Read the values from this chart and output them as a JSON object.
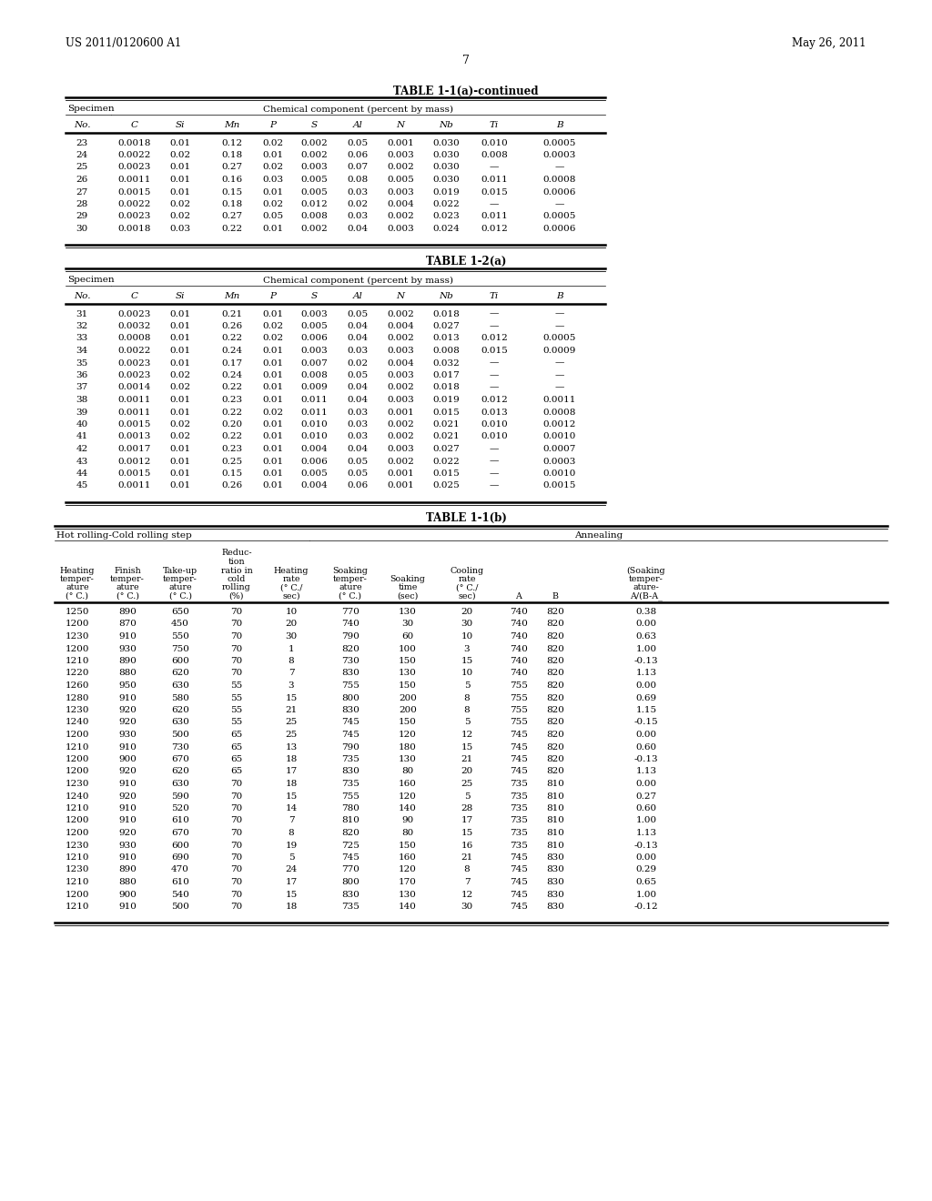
{
  "header_left": "US 2011/0120600 A1",
  "header_right": "May 26, 2011",
  "page_number": "7",
  "table1_title": "TABLE 1-1(a)-continued",
  "table1_specimen_header": "Specimen",
  "table1_chem_header": "Chemical component (percent by mass)",
  "table1_col_headers": [
    "No.",
    "C",
    "Si",
    "Mn",
    "P",
    "S",
    "Al",
    "N",
    "Nb",
    "Ti",
    "B"
  ],
  "table1_data": [
    [
      "23",
      "0.0018",
      "0.01",
      "0.12",
      "0.02",
      "0.002",
      "0.05",
      "0.001",
      "0.030",
      "0.010",
      "0.0005"
    ],
    [
      "24",
      "0.0022",
      "0.02",
      "0.18",
      "0.01",
      "0.002",
      "0.06",
      "0.003",
      "0.030",
      "0.008",
      "0.0003"
    ],
    [
      "25",
      "0.0023",
      "0.01",
      "0.27",
      "0.02",
      "0.003",
      "0.07",
      "0.002",
      "0.030",
      "—",
      "—"
    ],
    [
      "26",
      "0.0011",
      "0.01",
      "0.16",
      "0.03",
      "0.005",
      "0.08",
      "0.005",
      "0.030",
      "0.011",
      "0.0008"
    ],
    [
      "27",
      "0.0015",
      "0.01",
      "0.15",
      "0.01",
      "0.005",
      "0.03",
      "0.003",
      "0.019",
      "0.015",
      "0.0006"
    ],
    [
      "28",
      "0.0022",
      "0.02",
      "0.18",
      "0.02",
      "0.012",
      "0.02",
      "0.004",
      "0.022",
      "—",
      "—"
    ],
    [
      "29",
      "0.0023",
      "0.02",
      "0.27",
      "0.05",
      "0.008",
      "0.03",
      "0.002",
      "0.023",
      "0.011",
      "0.0005"
    ],
    [
      "30",
      "0.0018",
      "0.03",
      "0.22",
      "0.01",
      "0.002",
      "0.04",
      "0.003",
      "0.024",
      "0.012",
      "0.0006"
    ]
  ],
  "table2_title": "TABLE 1-2(a)",
  "table2_specimen_header": "Specimen",
  "table2_chem_header": "Chemical component (percent by mass)",
  "table2_col_headers": [
    "No.",
    "C",
    "Si",
    "Mn",
    "P",
    "S",
    "Al",
    "N",
    "Nb",
    "Ti",
    "B"
  ],
  "table2_data": [
    [
      "31",
      "0.0023",
      "0.01",
      "0.21",
      "0.01",
      "0.003",
      "0.05",
      "0.002",
      "0.018",
      "—",
      "—"
    ],
    [
      "32",
      "0.0032",
      "0.01",
      "0.26",
      "0.02",
      "0.005",
      "0.04",
      "0.004",
      "0.027",
      "—",
      "—"
    ],
    [
      "33",
      "0.0008",
      "0.01",
      "0.22",
      "0.02",
      "0.006",
      "0.04",
      "0.002",
      "0.013",
      "0.012",
      "0.0005"
    ],
    [
      "34",
      "0.0022",
      "0.01",
      "0.24",
      "0.01",
      "0.003",
      "0.03",
      "0.003",
      "0.008",
      "0.015",
      "0.0009"
    ],
    [
      "35",
      "0.0023",
      "0.01",
      "0.17",
      "0.01",
      "0.007",
      "0.02",
      "0.004",
      "0.032",
      "—",
      "—"
    ],
    [
      "36",
      "0.0023",
      "0.02",
      "0.24",
      "0.01",
      "0.008",
      "0.05",
      "0.003",
      "0.017",
      "—",
      "—"
    ],
    [
      "37",
      "0.0014",
      "0.02",
      "0.22",
      "0.01",
      "0.009",
      "0.04",
      "0.002",
      "0.018",
      "—",
      "—"
    ],
    [
      "38",
      "0.0011",
      "0.01",
      "0.23",
      "0.01",
      "0.011",
      "0.04",
      "0.003",
      "0.019",
      "0.012",
      "0.0011"
    ],
    [
      "39",
      "0.0011",
      "0.01",
      "0.22",
      "0.02",
      "0.011",
      "0.03",
      "0.001",
      "0.015",
      "0.013",
      "0.0008"
    ],
    [
      "40",
      "0.0015",
      "0.02",
      "0.20",
      "0.01",
      "0.010",
      "0.03",
      "0.002",
      "0.021",
      "0.010",
      "0.0012"
    ],
    [
      "41",
      "0.0013",
      "0.02",
      "0.22",
      "0.01",
      "0.010",
      "0.03",
      "0.002",
      "0.021",
      "0.010",
      "0.0010"
    ],
    [
      "42",
      "0.0017",
      "0.01",
      "0.23",
      "0.01",
      "0.004",
      "0.04",
      "0.003",
      "0.027",
      "—",
      "0.0007"
    ],
    [
      "43",
      "0.0012",
      "0.01",
      "0.25",
      "0.01",
      "0.006",
      "0.05",
      "0.002",
      "0.022",
      "—",
      "0.0003"
    ],
    [
      "44",
      "0.0015",
      "0.01",
      "0.15",
      "0.01",
      "0.005",
      "0.05",
      "0.001",
      "0.015",
      "—",
      "0.0010"
    ],
    [
      "45",
      "0.0011",
      "0.01",
      "0.26",
      "0.01",
      "0.004",
      "0.06",
      "0.001",
      "0.025",
      "—",
      "0.0015"
    ]
  ],
  "table3_title": "TABLE 1-1(b)",
  "table3_group1": "Hot rolling-Cold rolling step",
  "table3_group2": "Annealing",
  "table3_col_labels": [
    [
      "Heating",
      "temper-",
      "ature",
      "(° C.)"
    ],
    [
      "Finish",
      "temper-",
      "ature",
      "(° C.)"
    ],
    [
      "Take-up",
      "temper-",
      "ature",
      "(° C.)"
    ],
    [
      "Reduc-",
      "tion",
      "ratio in",
      "cold",
      "rolling",
      "(%)"
    ],
    [
      "Heating",
      "rate",
      "(° C./",
      "sec)"
    ],
    [
      "Soaking",
      "temper-",
      "ature",
      "(° C.)"
    ],
    [
      "Soaking",
      "time",
      "(sec)"
    ],
    [
      "Cooling",
      "rate",
      "(° C./",
      "sec)"
    ],
    [
      "A"
    ],
    [
      "B"
    ],
    [
      "(Soaking",
      "temper-",
      "ature-",
      "A/(B-A_"
    ]
  ],
  "table3_data": [
    [
      "1250",
      "890",
      "650",
      "70",
      "10",
      "770",
      "130",
      "20",
      "740",
      "820",
      "0.38"
    ],
    [
      "1200",
      "870",
      "450",
      "70",
      "20",
      "740",
      "30",
      "30",
      "740",
      "820",
      "0.00"
    ],
    [
      "1230",
      "910",
      "550",
      "70",
      "30",
      "790",
      "60",
      "10",
      "740",
      "820",
      "0.63"
    ],
    [
      "1200",
      "930",
      "750",
      "70",
      "1",
      "820",
      "100",
      "3",
      "740",
      "820",
      "1.00"
    ],
    [
      "1210",
      "890",
      "600",
      "70",
      "8",
      "730",
      "150",
      "15",
      "740",
      "820",
      "-0.13"
    ],
    [
      "1220",
      "880",
      "620",
      "70",
      "7",
      "830",
      "130",
      "10",
      "740",
      "820",
      "1.13"
    ],
    [
      "1260",
      "950",
      "630",
      "55",
      "3",
      "755",
      "150",
      "5",
      "755",
      "820",
      "0.00"
    ],
    [
      "1280",
      "910",
      "580",
      "55",
      "15",
      "800",
      "200",
      "8",
      "755",
      "820",
      "0.69"
    ],
    [
      "1230",
      "920",
      "620",
      "55",
      "21",
      "830",
      "200",
      "8",
      "755",
      "820",
      "1.15"
    ],
    [
      "1240",
      "920",
      "630",
      "55",
      "25",
      "745",
      "150",
      "5",
      "755",
      "820",
      "-0.15"
    ],
    [
      "1200",
      "930",
      "500",
      "65",
      "25",
      "745",
      "120",
      "12",
      "745",
      "820",
      "0.00"
    ],
    [
      "1210",
      "910",
      "730",
      "65",
      "13",
      "790",
      "180",
      "15",
      "745",
      "820",
      "0.60"
    ],
    [
      "1200",
      "900",
      "670",
      "65",
      "18",
      "735",
      "130",
      "21",
      "745",
      "820",
      "-0.13"
    ],
    [
      "1200",
      "920",
      "620",
      "65",
      "17",
      "830",
      "80",
      "20",
      "745",
      "820",
      "1.13"
    ],
    [
      "1230",
      "910",
      "630",
      "70",
      "18",
      "735",
      "160",
      "25",
      "735",
      "810",
      "0.00"
    ],
    [
      "1240",
      "920",
      "590",
      "70",
      "15",
      "755",
      "120",
      "5",
      "735",
      "810",
      "0.27"
    ],
    [
      "1210",
      "910",
      "520",
      "70",
      "14",
      "780",
      "140",
      "28",
      "735",
      "810",
      "0.60"
    ],
    [
      "1200",
      "910",
      "610",
      "70",
      "7",
      "810",
      "90",
      "17",
      "735",
      "810",
      "1.00"
    ],
    [
      "1200",
      "920",
      "670",
      "70",
      "8",
      "820",
      "80",
      "15",
      "735",
      "810",
      "1.13"
    ],
    [
      "1230",
      "930",
      "600",
      "70",
      "19",
      "725",
      "150",
      "16",
      "735",
      "810",
      "-0.13"
    ],
    [
      "1210",
      "910",
      "690",
      "70",
      "5",
      "745",
      "160",
      "21",
      "745",
      "830",
      "0.00"
    ],
    [
      "1230",
      "890",
      "470",
      "70",
      "24",
      "770",
      "120",
      "8",
      "745",
      "830",
      "0.29"
    ],
    [
      "1210",
      "880",
      "610",
      "70",
      "17",
      "800",
      "170",
      "7",
      "745",
      "830",
      "0.65"
    ],
    [
      "1200",
      "900",
      "540",
      "70",
      "15",
      "830",
      "130",
      "12",
      "745",
      "830",
      "1.00"
    ],
    [
      "1210",
      "910",
      "500",
      "70",
      "18",
      "735",
      "140",
      "30",
      "745",
      "830",
      "-0.12"
    ]
  ]
}
